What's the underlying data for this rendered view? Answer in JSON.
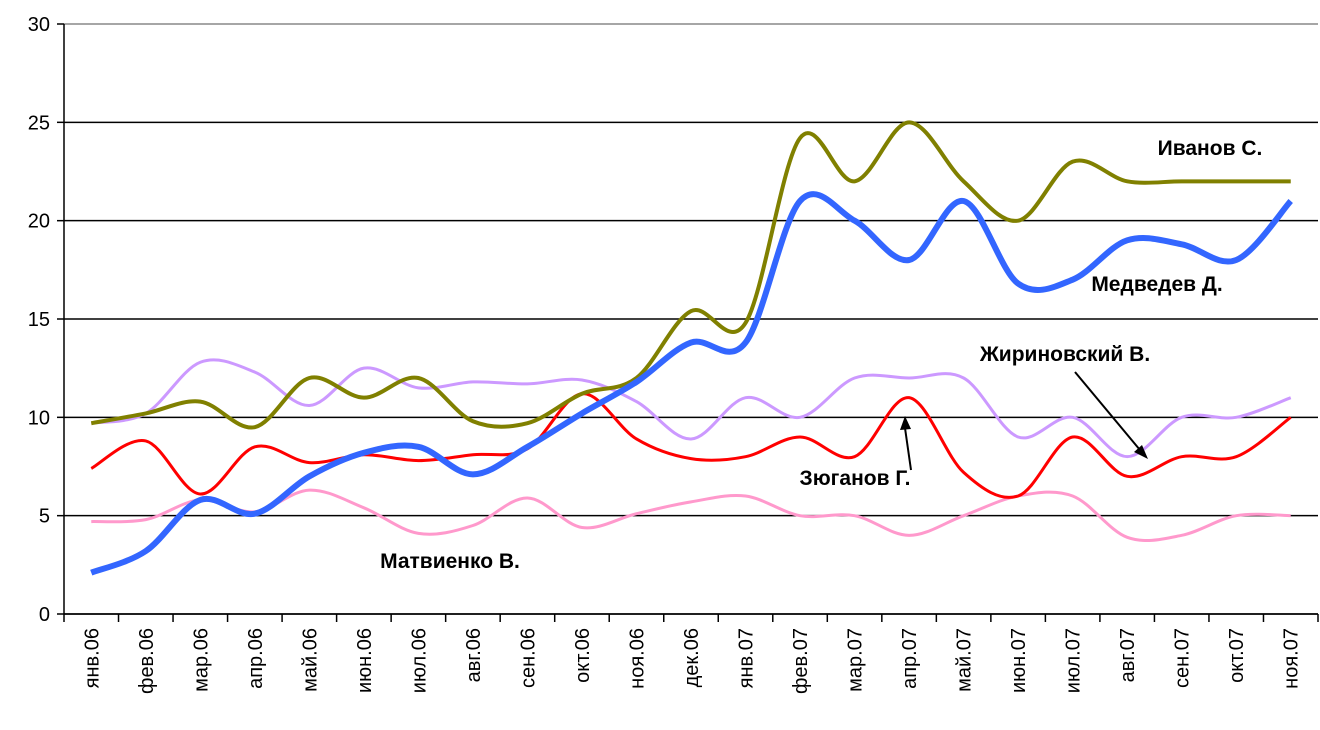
{
  "chart_data": {
    "type": "line",
    "categories": [
      "янв.06",
      "фев.06",
      "мар.06",
      "апр.06",
      "май.06",
      "июн.06",
      "июл.06",
      "авг.06",
      "сен.06",
      "окт.06",
      "ноя.06",
      "дек.06",
      "янв.07",
      "фев.07",
      "мар.07",
      "апр.07",
      "май.07",
      "июн.07",
      "июл.07",
      "авг.07",
      "сен.07",
      "окт.07",
      "ноя.07"
    ],
    "series": [
      {
        "name": "Иванов С.",
        "color": "#808000",
        "values": [
          9.7,
          10.2,
          10.8,
          9.5,
          12,
          11,
          12,
          9.8,
          9.7,
          11.2,
          12,
          15.4,
          14.8,
          24.2,
          22,
          25,
          22,
          20,
          23,
          22,
          22,
          22,
          22
        ]
      },
      {
        "name": "Медведев Д.",
        "color": "#3366ff",
        "values": [
          2.1,
          3.2,
          5.8,
          5.1,
          7,
          8.2,
          8.5,
          7.1,
          8.5,
          10.2,
          11.8,
          13.8,
          13.8,
          21,
          20,
          18,
          21,
          16.8,
          17,
          19,
          18.8,
          18,
          21
        ]
      },
      {
        "name": "Жириновский В.",
        "color": "#cc99ff",
        "values": [
          9.7,
          10.2,
          12.8,
          12.3,
          10.6,
          12.5,
          11.5,
          11.8,
          11.7,
          11.9,
          10.8,
          8.9,
          11,
          10,
          12,
          12,
          12,
          9,
          10,
          8,
          10,
          10,
          11
        ]
      },
      {
        "name": "Зюганов Г.",
        "color": "#ff0000",
        "values": [
          7.4,
          8.8,
          6.1,
          8.5,
          7.7,
          8.1,
          7.8,
          8.1,
          8.4,
          11.2,
          8.9,
          7.9,
          8,
          9,
          8,
          11,
          7.2,
          6,
          9,
          7,
          8,
          8,
          10
        ]
      },
      {
        "name": "Матвиенко В.",
        "color": "#ff99cc",
        "values": [
          4.7,
          4.8,
          5.8,
          5.2,
          6.3,
          5.4,
          4.1,
          4.5,
          5.9,
          4.4,
          5.1,
          5.7,
          6,
          5,
          5,
          4,
          5,
          6,
          6,
          3.9,
          4,
          5,
          5
        ]
      }
    ],
    "ylim": [
      0,
      30
    ],
    "yticks": [
      0,
      5,
      10,
      15,
      20,
      25,
      30
    ],
    "grid": true
  }
}
